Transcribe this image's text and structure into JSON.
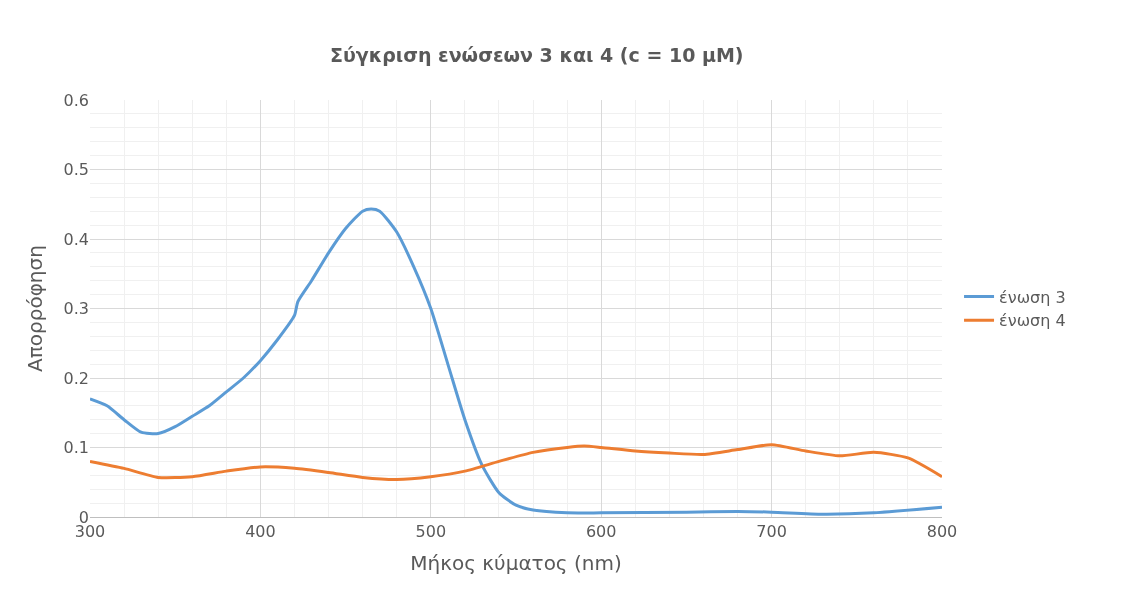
{
  "chart_data": {
    "type": "line",
    "title": "Σύγκριση ενώσεων 3 και 4 (c = 10 μM)",
    "xlabel": "Μήκος κύματος (nm)",
    "ylabel": "Απορρόφηση",
    "xlim": [
      300,
      800
    ],
    "xticks": [
      300,
      400,
      500,
      600,
      700,
      800
    ],
    "ylim": [
      0,
      0.6
    ],
    "yticks": [
      0,
      0.1,
      0.2,
      0.3,
      0.4,
      0.5,
      0.6
    ],
    "grid": true,
    "legend": "right",
    "marker": "none",
    "line_style": "solid",
    "series": [
      {
        "name": "ένωση 3",
        "color": "#5b9bd5",
        "x": [
          300,
          310,
          320,
          330,
          340,
          350,
          360,
          370,
          380,
          390,
          400,
          410,
          420,
          422,
          430,
          440,
          450,
          460,
          465,
          470,
          480,
          490,
          500,
          510,
          520,
          530,
          540,
          550,
          560,
          580,
          600,
          650,
          680,
          700,
          730,
          760,
          800
        ],
        "values": [
          0.17,
          0.16,
          0.14,
          0.122,
          0.12,
          0.13,
          0.145,
          0.16,
          0.18,
          0.2,
          0.225,
          0.255,
          0.29,
          0.31,
          0.34,
          0.38,
          0.415,
          0.44,
          0.443,
          0.44,
          0.41,
          0.36,
          0.3,
          0.22,
          0.14,
          0.075,
          0.035,
          0.017,
          0.01,
          0.006,
          0.006,
          0.007,
          0.008,
          0.007,
          0.004,
          0.006,
          0.014
        ]
      },
      {
        "name": "ένωση 4",
        "color": "#ed7d31",
        "x": [
          300,
          320,
          340,
          360,
          380,
          400,
          420,
          440,
          460,
          480,
          500,
          520,
          540,
          560,
          580,
          590,
          600,
          620,
          640,
          660,
          680,
          700,
          720,
          740,
          760,
          780,
          800
        ],
        "values": [
          0.08,
          0.07,
          0.057,
          0.058,
          0.066,
          0.072,
          0.07,
          0.064,
          0.057,
          0.054,
          0.058,
          0.066,
          0.08,
          0.093,
          0.1,
          0.102,
          0.1,
          0.095,
          0.092,
          0.09,
          0.097,
          0.104,
          0.095,
          0.088,
          0.093,
          0.085,
          0.058
        ]
      }
    ]
  }
}
